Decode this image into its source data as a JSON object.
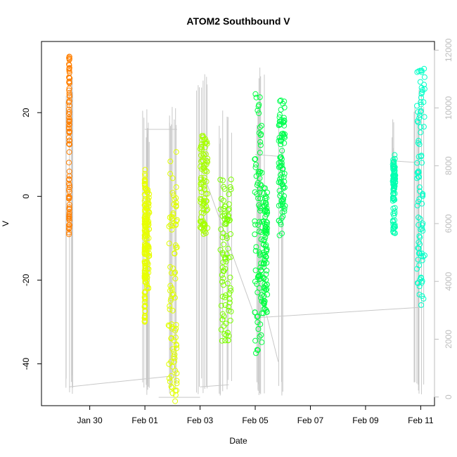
{
  "chart_data": {
    "type": "scatter",
    "title": "ATOM2 Southbound V",
    "xlabel": "Date",
    "ylabel": "V",
    "xlim": [
      "2024-01-28T06:00",
      "2024-02-11T12:00"
    ],
    "ylim": [
      -50,
      37
    ],
    "xticks": [
      {
        "label": "Jan 30",
        "date": "2024-01-30"
      },
      {
        "label": "Feb 01",
        "date": "2024-02-01"
      },
      {
        "label": "Feb 03",
        "date": "2024-02-03"
      },
      {
        "label": "Feb 05",
        "date": "2024-02-05"
      },
      {
        "label": "Feb 07",
        "date": "2024-02-07"
      },
      {
        "label": "Feb 09",
        "date": "2024-02-09"
      },
      {
        "label": "Feb 11",
        "date": "2024-02-11"
      }
    ],
    "yticks": [
      -40,
      -20,
      0,
      20
    ],
    "y2lim": [
      -300,
      12300
    ],
    "y2ticks": [
      0,
      2000,
      4000,
      6000,
      8000,
      10000,
      12000
    ],
    "y2_color": "#bebebe",
    "grid": false,
    "legend": "none",
    "series": [
      {
        "start": "2024-01-29T05:50",
        "end": "2024-01-29T06:15",
        "ymin": -9.5,
        "ymax": 33.5,
        "color": "#ff7f00"
      },
      {
        "start": "2024-01-31T23:40",
        "end": "2024-02-01T00:10",
        "ymin": -30,
        "ymax": 6.5,
        "color": "#e8ff00"
      },
      {
        "start": "2024-02-01T00:10",
        "end": "2024-02-01T04:00",
        "ymin": -22,
        "ymax": 3,
        "color": "#e8ff00"
      },
      {
        "start": "2024-02-01T20:30",
        "end": "2024-02-02T04:00",
        "ymin": -49,
        "ymax": 11,
        "color": "#e0ff00"
      },
      {
        "start": "2024-02-03T00:00",
        "end": "2024-02-03T06:30",
        "ymin": -9,
        "ymax": 14.5,
        "color": "#a6ff00"
      },
      {
        "start": "2024-02-03T17:30",
        "end": "2024-02-04T03:00",
        "ymin": -34.5,
        "ymax": 5,
        "color": "#7cff00"
      },
      {
        "start": "2024-02-04T23:30",
        "end": "2024-02-05T06:00",
        "ymin": -39,
        "ymax": 25,
        "color": "#00ff40"
      },
      {
        "start": "2024-02-05T07:00",
        "end": "2024-02-05T10:30",
        "ymin": -28,
        "ymax": 2,
        "color": "#00ff40"
      },
      {
        "start": "2024-02-05T20:30",
        "end": "2024-02-06T02:00",
        "ymin": -10,
        "ymax": 23,
        "color": "#00ff50"
      },
      {
        "start": "2024-02-09T23:40",
        "end": "2024-02-10T02:00",
        "ymin": -9,
        "ymax": 10,
        "color": "#00ffb0"
      },
      {
        "start": "2024-02-10T20:30",
        "end": "2024-02-11T03:30",
        "ymin": -26,
        "ymax": 30.5,
        "color": "#00ffc8"
      }
    ]
  }
}
